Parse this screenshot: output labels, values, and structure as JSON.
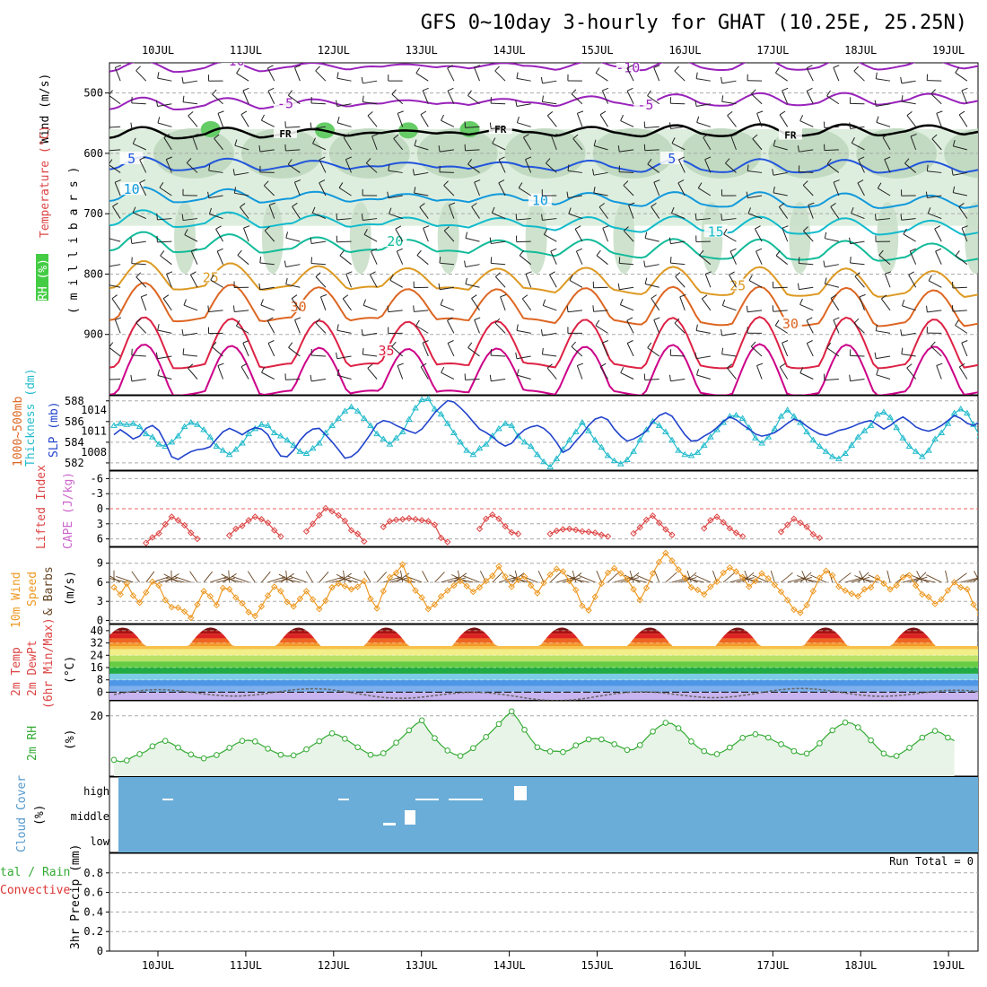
{
  "title": "GFS 0~10day 3-hourly for GHAT (10.25E, 25.25N)",
  "dates": [
    "10JUL",
    "11JUL",
    "12JUL",
    "13JUL",
    "14JUL",
    "15JUL",
    "16JUL",
    "17JUL",
    "18JUL",
    "19JUL"
  ],
  "colors": {
    "temp_m10": "#9922bb",
    "temp_m5": "#9922bb",
    "freezing": "#000000",
    "temp_5": "#2255dd",
    "temp_10": "#1199dd",
    "temp_15": "#11bbcc",
    "temp_20": "#11bb99",
    "temp_25": "#dd9922",
    "temp_30": "#dd6622",
    "temp_35": "#dd2244",
    "temp_40": "#cc0088",
    "rh_fill": "#d6ead6",
    "rh_high": "#66cc66",
    "thickness": "#22bbcc",
    "slp": "#2244cc",
    "lifted_index": "#dd4444",
    "cape": "#cc66cc",
    "wind_speed": "#ee9922",
    "wind_barb": "#664422",
    "dewpoint": "#666666",
    "rh2m": "#33aa33",
    "rh2m_fill": "#e8f4e8",
    "cloud": "#6aadd8",
    "precip_total": "#33aa33",
    "precip_conv": "#dd3333"
  },
  "labels": {
    "wind_label": "Wind (m/s)",
    "temperature_label": "Temperature (°C)",
    "rh_label": "RH (%)",
    "millibars_label": "( m i l l i b a r s )",
    "freezing_label": "FR",
    "thickness_label": "1000~500mb",
    "thickness_label2": "Thickness (dm)",
    "slp_label": "SLP (mb)",
    "lifted_label": "Lifted Index",
    "cape_label": "CAPE (J/kg)",
    "wind10_label1": "10m Wind",
    "wind10_label2": "Speed",
    "wind10_label3": "& Barbs",
    "ms_unit": "(m/s)",
    "temp2m_label1": "2m Temp",
    "temp2m_label2": "2m DewPt",
    "temp2m_label3": "(6hr Min/Max)",
    "celsius_unit": "(°C)",
    "rh2m_label": "2m RH",
    "pct_unit": "(%)",
    "cloud_label": "Cloud Cover",
    "cloud_unit": "(%)",
    "cloud_high": "high",
    "cloud_middle": "middle",
    "cloud_low": "low",
    "precip_label1": "tal / Rain",
    "precip_label2": "Convective",
    "precip_label3": "3hr Precip (mm)",
    "run_total": "Run Total = 0"
  },
  "chart_data": [
    {
      "type": "line",
      "name": "upper-air cross section",
      "pressure_ticks": [
        500,
        600,
        700,
        800,
        900
      ],
      "pressure_range": [
        1000,
        450
      ],
      "isotherm_labels": [
        {
          "text": "-10",
          "value": -10,
          "day": 0.85
        },
        {
          "text": "-10",
          "value": -10,
          "day": 5.35
        },
        {
          "text": "-5",
          "value": -5,
          "day": 1.45
        },
        {
          "text": "-5",
          "value": -5,
          "day": 5.55
        },
        {
          "text": "FR",
          "value": 0,
          "day": 1.45
        },
        {
          "text": "FR",
          "value": 0,
          "day": 3.9
        },
        {
          "text": "FR",
          "value": 0,
          "day": 7.2
        },
        {
          "text": "5",
          "value": 5,
          "day": -0.3
        },
        {
          "text": "5",
          "value": 5,
          "day": 5.85
        },
        {
          "text": "10",
          "value": 10,
          "day": -0.3
        },
        {
          "text": "10",
          "value": 10,
          "day": 4.35
        },
        {
          "text": "15",
          "value": 15,
          "day": 6.35
        },
        {
          "text": "20",
          "value": 20,
          "day": 2.7
        },
        {
          "text": "25",
          "value": 25,
          "day": 0.6
        },
        {
          "text": "25",
          "value": 25,
          "day": 6.6
        },
        {
          "text": "30",
          "value": 30,
          "day": 1.6
        },
        {
          "text": "30",
          "value": 30,
          "day": 7.2
        },
        {
          "text": "35",
          "value": 35,
          "day": 2.6
        }
      ],
      "isotherms": [
        {
          "value": -10,
          "base": 458,
          "amp": 8,
          "trend": -5
        },
        {
          "value": -5,
          "base": 520,
          "amp": 9,
          "trend": -10
        },
        {
          "value": 0,
          "base": 568,
          "amp": 8,
          "trend": -6
        },
        {
          "value": 5,
          "base": 620,
          "amp": 10,
          "trend": 5
        },
        {
          "value": 10,
          "base": 672,
          "amp": 12,
          "trend": 12
        },
        {
          "value": 15,
          "base": 712,
          "amp": 14,
          "trend": 16
        },
        {
          "value": 20,
          "base": 752,
          "amp": 18,
          "trend": 18
        },
        {
          "value": 25,
          "base": 810,
          "amp": 28,
          "trend": 15
        },
        {
          "value": 30,
          "base": 858,
          "amp": 40,
          "trend": 10
        },
        {
          "value": 35,
          "base": 930,
          "amp": 55,
          "trend": 0
        },
        {
          "value": 40,
          "base": 975,
          "amp": 55,
          "trend": 0
        }
      ]
    },
    {
      "type": "line",
      "name": "thickness and sea level pressure",
      "thickness_ticks": [
        582,
        584,
        586,
        588
      ],
      "slp_ticks": [
        1008,
        1011,
        1014
      ],
      "thickness_dm": [
        585.6,
        585.8,
        585.7,
        585.8,
        585.5,
        584.8,
        584.5,
        583.8,
        583.6,
        584.0,
        584.6,
        585.5,
        585.9,
        585.7,
        585.2,
        584.5,
        583.6,
        583.2,
        582.8,
        583.3,
        583.9,
        584.8,
        585.3,
        585.7,
        585.6,
        584.9,
        584.6,
        584.2,
        583.7,
        583.1,
        582.9,
        583.4,
        583.9,
        584.9,
        585.6,
        586.3,
        587.0,
        587.4,
        587.0,
        586.3,
        585.6,
        584.8,
        584.3,
        583.8,
        584.4,
        585.0,
        586.2,
        587.3,
        588.1,
        588.2,
        587.2,
        586.7,
        585.8,
        584.9,
        584.0,
        583.2,
        582.8,
        583.4,
        583.8,
        584.6,
        585.3,
        585.8,
        585.6,
        584.6,
        584.0,
        583.6,
        582.8,
        582.1,
        581.6,
        582.4,
        583.3,
        584.2,
        585.0,
        585.9,
        585.1,
        584.2,
        583.5,
        582.7,
        582.2,
        581.9,
        582.3,
        583.1,
        584.2,
        585.2,
        586.0,
        585.6,
        585.0,
        584.2,
        583.2,
        582.8,
        582.7,
        583.0,
        583.7,
        584.5,
        585.2,
        585.9,
        586.5,
        586.6,
        586.3,
        585.4,
        584.4,
        583.9,
        584.5,
        585.3,
        586.5,
        587.1,
        586.5,
        585.9,
        585.0,
        584.2,
        583.6,
        583.1,
        582.6,
        582.4,
        582.9,
        583.7,
        584.5,
        585.1,
        585.6,
        586.7,
        586.9,
        586.4,
        585.4,
        584.4,
        583.6,
        583.1,
        582.6,
        583.2,
        584.3,
        584.9,
        585.8,
        586.8,
        587.2,
        586.8,
        585.7,
        584.6,
        584.0
      ],
      "slp_mb": [
        1010.5,
        1011.2,
        1010.6,
        1009.9,
        1010.3,
        1011.4,
        1011.8,
        1011.1,
        1009.4,
        1007.4,
        1007.0,
        1007.6,
        1008.1,
        1008.4,
        1008.5,
        1008.8,
        1009.9,
        1010.9,
        1011.4,
        1011.0,
        1010.5,
        1011.1,
        1011.5,
        1011.3,
        1010.5,
        1008.8,
        1007.5,
        1007.4,
        1008.3,
        1009.7,
        1010.7,
        1011.3,
        1011.4,
        1010.5,
        1009.5,
        1008.4,
        1007.2,
        1007.4,
        1008.1,
        1009.3,
        1010.6,
        1012.0,
        1012.5,
        1012.3,
        1011.8,
        1011.4,
        1011.0,
        1010.7,
        1011.3,
        1012.4,
        1013.6,
        1014.5,
        1015.3,
        1015.1,
        1014.3,
        1013.4,
        1012.3,
        1011.3,
        1010.8,
        1010.2,
        1009.4,
        1008.9,
        1009.3,
        1010.4,
        1011.2,
        1011.6,
        1011.8,
        1011.4,
        1010.6,
        1009.4,
        1008.0,
        1008.5,
        1009.6,
        1010.6,
        1011.8,
        1012.7,
        1013.0,
        1012.6,
        1011.3,
        1010.3,
        1009.6,
        1009.9,
        1010.4,
        1011.0,
        1012.3,
        1013.2,
        1013.6,
        1013.1,
        1011.8,
        1010.5,
        1009.6,
        1009.7,
        1010.3,
        1010.8,
        1011.5,
        1012.4,
        1013.0,
        1012.6,
        1011.9,
        1011.3,
        1010.6,
        1010.3,
        1010.5,
        1010.8,
        1011.4,
        1012.1,
        1012.7,
        1012.4,
        1011.7,
        1011.1,
        1010.6,
        1010.4,
        1010.7,
        1011.1,
        1011.3,
        1011.6,
        1012.0,
        1012.3,
        1012.5,
        1011.9,
        1011.3,
        1011.8,
        1012.5,
        1013.0,
        1012.4,
        1011.6,
        1011.2,
        1011.0,
        1011.3,
        1011.8,
        1012.5,
        1013.2,
        1012.8,
        1012.1,
        1011.8,
        1012.3
      ]
    },
    {
      "type": "line",
      "name": "lifted index and CAPE",
      "ticks": [
        -6,
        -3,
        0,
        3,
        6
      ],
      "lifted_index": [
        9,
        9,
        9,
        9,
        9,
        6.8,
        5.7,
        4.9,
        3.1,
        1.6,
        2.3,
        3.3,
        4.8,
        6.0,
        9,
        9,
        9,
        9,
        5.3,
        4.0,
        3.4,
        2.3,
        1.6,
        2.1,
        2.8,
        4.3,
        5.5,
        9,
        9,
        9,
        4.5,
        3.0,
        1.3,
        -0.1,
        0.5,
        1.3,
        2.4,
        4.3,
        5.0,
        6.5,
        9,
        9,
        3.6,
        2.5,
        2.2,
        2.1,
        1.9,
        2.1,
        2.3,
        2.5,
        3.2,
        5.8,
        6.6,
        9,
        9,
        9,
        9,
        4.0,
        2.0,
        1.2,
        2.0,
        3.5,
        4.7,
        5.0,
        9,
        9,
        9,
        9,
        5.0,
        4.4,
        4.1,
        4.0,
        4.2,
        4.5,
        4.6,
        4.8,
        5.2,
        5.5,
        9,
        9,
        9,
        4.9,
        3.7,
        2.2,
        1.4,
        2.8,
        4.1,
        5.2,
        9,
        9,
        9,
        9,
        3.9,
        2.3,
        1.6,
        2.7,
        3.9,
        4.8,
        5.5,
        9,
        9,
        9,
        9,
        9,
        4.6,
        3.2,
        2.0,
        2.8,
        3.6,
        5.1,
        5.8,
        9,
        9,
        9,
        9,
        9,
        9,
        9,
        9,
        9,
        9
      ],
      "cape": []
    },
    {
      "type": "line",
      "name": "10m wind speed",
      "ticks": [
        0,
        3,
        6,
        9
      ],
      "speed_ms": [
        5.2,
        4.1,
        5.8,
        3.9,
        2.8,
        4.4,
        6.1,
        5.5,
        3.2,
        2.1,
        2.0,
        1.4,
        0.4,
        2.5,
        4.6,
        3.8,
        2.4,
        5.1,
        4.9,
        3.6,
        2.7,
        1.3,
        0.7,
        2.2,
        3.9,
        5.3,
        4.6,
        2.9,
        2.2,
        3.4,
        4.6,
        3.3,
        1.8,
        3.1,
        5.2,
        5.8,
        5.4,
        4.9,
        5.3,
        6.2,
        3.4,
        1.9,
        4.6,
        6.8,
        7.5,
        8.8,
        6.3,
        4.7,
        3.6,
        1.8,
        2.5,
        3.8,
        4.7,
        5.5,
        6.2,
        5.4,
        4.5,
        5.2,
        6.2,
        7.0,
        8.5,
        6.9,
        5.3,
        6.4,
        6.9,
        5.5,
        4.3,
        5.9,
        7.2,
        8.1,
        7.7,
        6.2,
        4.8,
        2.3,
        1.6,
        3.7,
        5.8,
        7.5,
        8.2,
        7.4,
        6.5,
        4.9,
        3.2,
        5.1,
        7.4,
        9.2,
        10.6,
        9.4,
        8.0,
        6.7,
        5.2,
        4.8,
        4.1,
        5.3,
        6.1,
        7.5,
        8.3,
        7.7,
        6.8,
        5.3,
        6.2,
        7.4,
        6.6,
        5.6,
        4.5,
        3.2,
        1.7,
        1.2,
        2.4,
        4.6,
        6.7,
        7.8,
        7.1,
        5.3,
        4.7,
        4.2,
        3.8,
        4.9,
        5.2,
        6.7,
        5.8,
        4.9,
        5.5,
        6.8,
        7.1,
        5.5,
        4.1,
        3.7,
        2.6,
        3.3,
        4.7,
        6.0,
        5.2,
        4.9,
        2.5,
        0.9
      ]
    },
    {
      "type": "area",
      "name": "2m temperature",
      "ticks": [
        0,
        8,
        16,
        24,
        32,
        40
      ],
      "min_temp": 30,
      "max_temp": 42,
      "dewpoint_approx": -1.5
    },
    {
      "type": "line",
      "name": "2m relative humidity",
      "ticks": [
        20
      ],
      "rh_pct": [
        5.4,
        4.8,
        5.2,
        6.5,
        7.3,
        8.2,
        9.9,
        11.2,
        11.7,
        10.8,
        9.5,
        8.1,
        7.2,
        6.2,
        5.9,
        6.4,
        7.0,
        8.1,
        9.4,
        10.7,
        11.7,
        11.9,
        11.5,
        10.3,
        9.1,
        8.0,
        7.1,
        6.6,
        6.9,
        7.6,
        8.9,
        10.3,
        11.6,
        13.1,
        14.2,
        13.6,
        12.4,
        11.0,
        9.6,
        8.3,
        7.1,
        6.8,
        7.6,
        9.1,
        11.1,
        13.0,
        15.2,
        17.1,
        18.5,
        15.3,
        12.6,
        10.3,
        8.5,
        7.3,
        6.7,
        7.8,
        9.3,
        11.1,
        13.0,
        15.1,
        17.3,
        19.6,
        21.5,
        18.8,
        15.4,
        12.3,
        9.6,
        8.5,
        8.2,
        8.3,
        8.0,
        8.6,
        10.2,
        11.1,
        12.2,
        12.5,
        12.2,
        11.3,
        10.6,
        9.6,
        8.7,
        8.8,
        10.3,
        12.6,
        14.8,
        16.5,
        17.7,
        17.4,
        15.9,
        14.0,
        11.5,
        9.6,
        8.3,
        7.1,
        7.3,
        8.2,
        9.5,
        11.0,
        12.7,
        13.5,
        13.9,
        13.6,
        12.8,
        11.6,
        10.6,
        9.6,
        8.3,
        7.2,
        7.5,
        8.8,
        10.9,
        13.2,
        15.2,
        16.7,
        17.8,
        17.6,
        16.2,
        14.2,
        11.9,
        9.5,
        7.5,
        6.4,
        6.7,
        8.0,
        9.4,
        11.0,
        12.8,
        14.1,
        15.0,
        14.3,
        12.8,
        11.8
      ]
    },
    {
      "type": "bar",
      "name": "cloud cover",
      "levels": [
        "high",
        "middle",
        "low"
      ],
      "cover_pct_low": 100,
      "cover_pct_middle": 100,
      "cover_pct_high": 100
    },
    {
      "type": "bar",
      "name": "3hr precipitation",
      "ticks": [
        0,
        0.2,
        0.4,
        0.6,
        0.8
      ],
      "ylim": [
        0,
        1
      ],
      "total_mm": [],
      "convective_mm": []
    }
  ]
}
